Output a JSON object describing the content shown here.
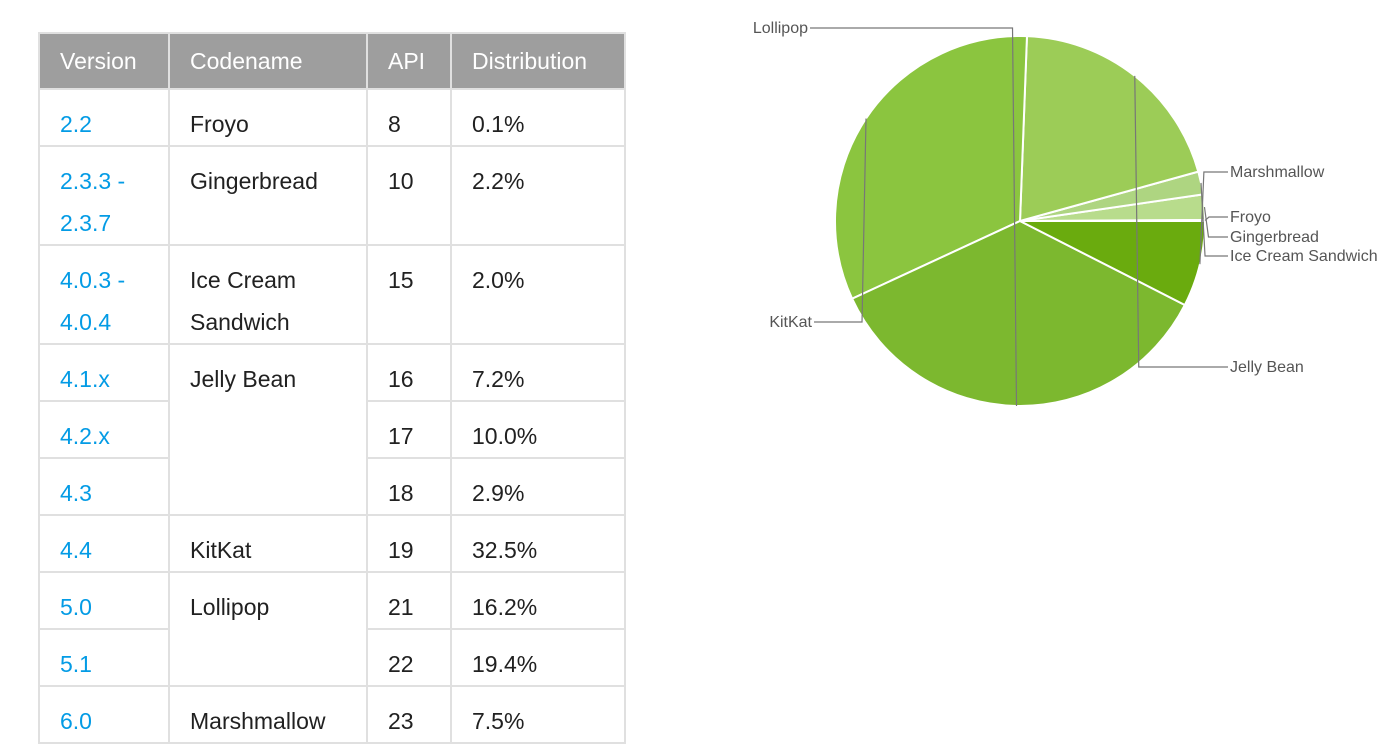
{
  "table": {
    "headers": {
      "version": "Version",
      "codename": "Codename",
      "api": "API",
      "distribution": "Distribution"
    },
    "rows": [
      {
        "version": "2.2",
        "codename": "Froyo",
        "api": "8",
        "distribution": "0.1%"
      },
      {
        "version": "2.3.3 - 2.3.7",
        "codename": "Gingerbread",
        "api": "10",
        "distribution": "2.2%"
      },
      {
        "version": "4.0.3 - 4.0.4",
        "codename": "Ice Cream Sandwich",
        "api": "15",
        "distribution": "2.0%"
      },
      {
        "version": "4.1.x",
        "codename": "Jelly Bean",
        "api": "16",
        "distribution": "7.2%"
      },
      {
        "version": "4.2.x",
        "codename": "",
        "api": "17",
        "distribution": "10.0%"
      },
      {
        "version": "4.3",
        "codename": "",
        "api": "18",
        "distribution": "2.9%"
      },
      {
        "version": "4.4",
        "codename": "KitKat",
        "api": "19",
        "distribution": "32.5%"
      },
      {
        "version": "5.0",
        "codename": "Lollipop",
        "api": "21",
        "distribution": "16.2%"
      },
      {
        "version": "5.1",
        "codename": "",
        "api": "22",
        "distribution": "19.4%"
      },
      {
        "version": "6.0",
        "codename": "Marshmallow",
        "api": "23",
        "distribution": "7.5%"
      }
    ]
  },
  "colors": {
    "header_bg": "#9e9e9e",
    "link": "#039be5",
    "border": "#e0e0e0"
  },
  "chart_data": {
    "type": "pie",
    "title": "",
    "start": "3 o'clock, counter-clockwise",
    "slices": [
      {
        "label": "Froyo",
        "value": 0.1,
        "color": "#c5e1a5"
      },
      {
        "label": "Gingerbread",
        "value": 2.2,
        "color": "#b8dc8c"
      },
      {
        "label": "Ice Cream Sandwich",
        "value": 2.0,
        "color": "#aed581"
      },
      {
        "label": "Jelly Bean",
        "value": 20.1,
        "color": "#9ccc57"
      },
      {
        "label": "KitKat",
        "value": 32.5,
        "color": "#8bc53f"
      },
      {
        "label": "Lollipop",
        "value": 35.6,
        "color": "#7cb82f"
      },
      {
        "label": "Marshmallow",
        "value": 7.5,
        "color": "#6aab0e"
      }
    ]
  }
}
